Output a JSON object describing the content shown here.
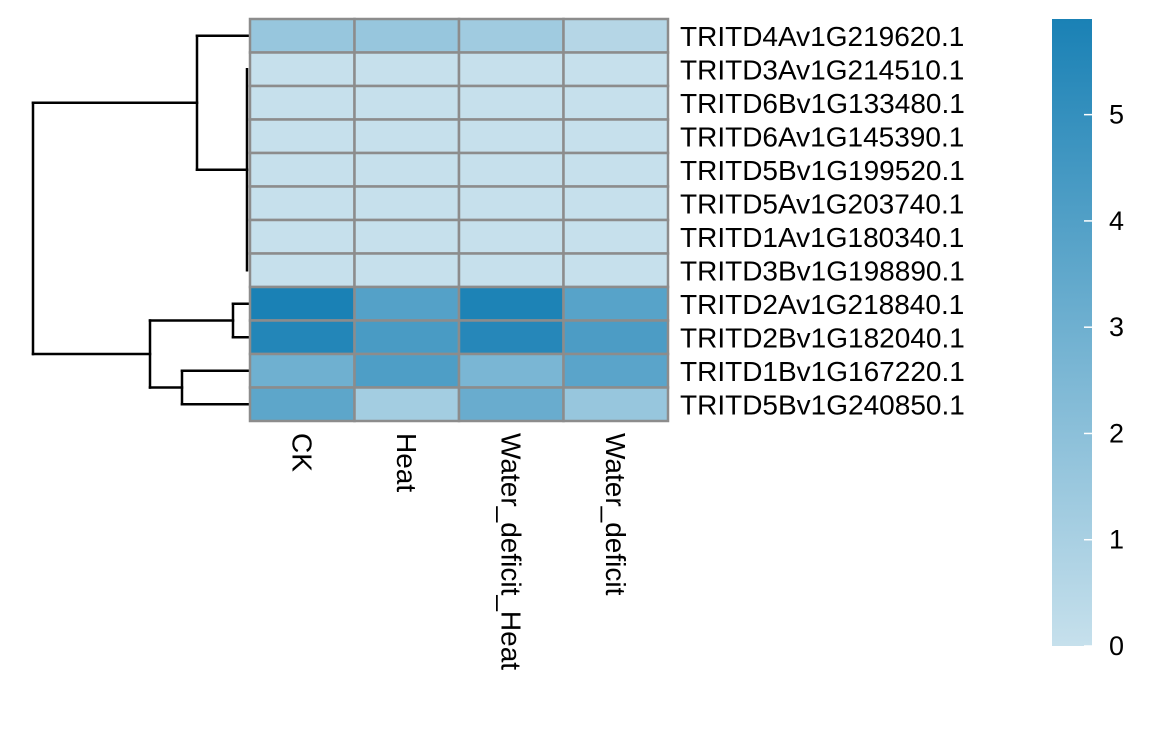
{
  "chart_data": {
    "type": "heatmap",
    "title": "",
    "rows": [
      "TRITD4Av1G219620.1",
      "TRITD3Av1G214510.1",
      "TRITD6Bv1G133480.1",
      "TRITD6Av1G145390.1",
      "TRITD5Bv1G199520.1",
      "TRITD5Av1G203740.1",
      "TRITD1Av1G180340.1",
      "TRITD3Bv1G198890.1",
      "TRITD2Av1G218840.1",
      "TRITD2Bv1G182040.1",
      "TRITD1Bv1G167220.1",
      "TRITD5Bv1G240850.1"
    ],
    "columns": [
      "CK",
      "Heat",
      "Water_deficit_Heat",
      "Water_deficit"
    ],
    "values": [
      [
        1.6,
        1.6,
        1.3,
        0.6
      ],
      [
        0.0,
        0.0,
        0.0,
        0.0
      ],
      [
        0.0,
        0.0,
        0.0,
        0.0
      ],
      [
        0.0,
        0.0,
        0.0,
        0.0
      ],
      [
        0.0,
        0.0,
        0.0,
        0.0
      ],
      [
        0.0,
        0.0,
        0.0,
        0.0
      ],
      [
        0.0,
        0.0,
        0.0,
        0.0
      ],
      [
        0.0,
        0.0,
        0.0,
        0.0
      ],
      [
        5.9,
        3.9,
        5.8,
        3.8
      ],
      [
        5.6,
        4.3,
        5.5,
        4.2
      ],
      [
        3.0,
        4.1,
        2.6,
        3.7
      ],
      [
        3.6,
        1.2,
        3.2,
        1.6
      ]
    ],
    "color_scale": {
      "min": 0,
      "max": 5.9,
      "low_color": "#c6e0ec",
      "high_color": "#1a81b5",
      "ticks": [
        0,
        1,
        2,
        3,
        4,
        5
      ]
    },
    "row_dendrogram": true,
    "cell_border_color": "#8c8c8c"
  }
}
